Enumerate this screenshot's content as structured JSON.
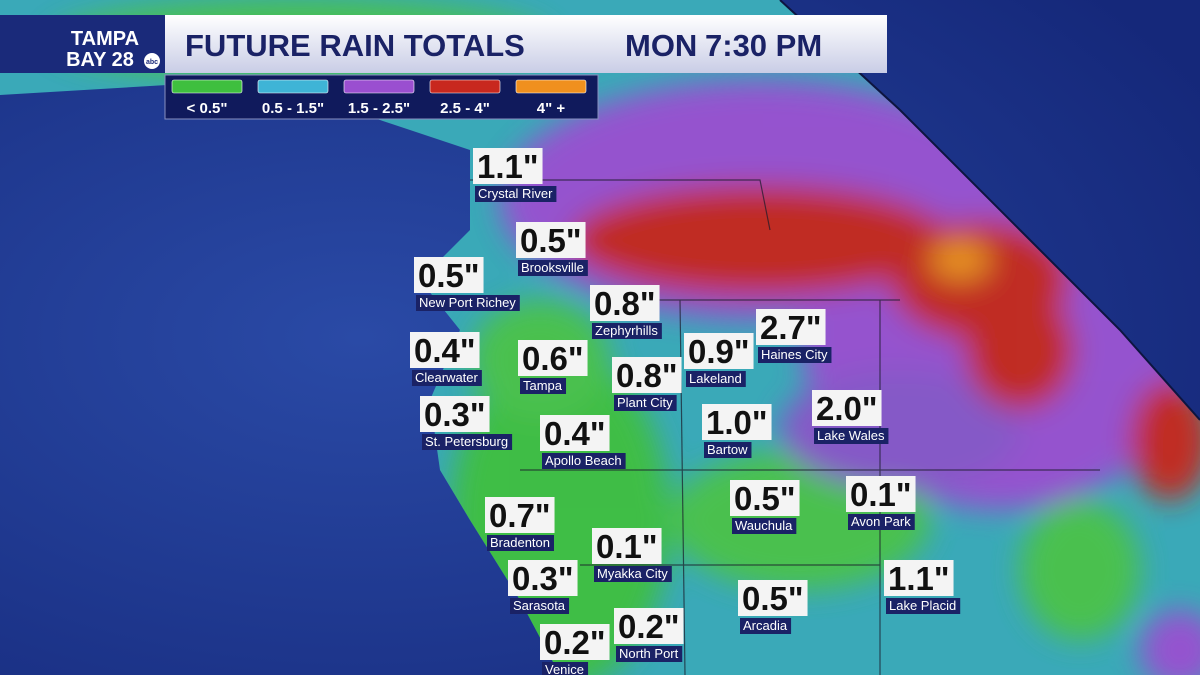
{
  "header": {
    "logo": {
      "line1": "TAMPA",
      "line2": "BAY 28",
      "network": "abc"
    },
    "title": "FUTURE RAIN TOTALS",
    "day": "MON",
    "time": "7:30 PM"
  },
  "legend": [
    {
      "label": "< 0.5\"",
      "color": "#3fbf3f"
    },
    {
      "label": "0.5 - 1.5\"",
      "color": "#3fb4d6"
    },
    {
      "label": "1.5 - 2.5\"",
      "color": "#9a4fd0"
    },
    {
      "label": "2.5 - 4\"",
      "color": "#c8281e"
    },
    {
      "label": "4\" +",
      "color": "#f0901e"
    }
  ],
  "cities": [
    {
      "name": "Crystal River",
      "total": "1.1\""
    },
    {
      "name": "Brooksville",
      "total": "0.5\""
    },
    {
      "name": "New Port Richey",
      "total": "0.5\""
    },
    {
      "name": "Zephyrhills",
      "total": "0.8\""
    },
    {
      "name": "Clearwater",
      "total": "0.4\""
    },
    {
      "name": "Tampa",
      "total": "0.6\""
    },
    {
      "name": "Plant City",
      "total": "0.8\""
    },
    {
      "name": "Lakeland",
      "total": "0.9\""
    },
    {
      "name": "Haines City",
      "total": "2.7\""
    },
    {
      "name": "St. Petersburg",
      "total": "0.3\""
    },
    {
      "name": "Apollo Beach",
      "total": "0.4\""
    },
    {
      "name": "Bartow",
      "total": "1.0\""
    },
    {
      "name": "Lake Wales",
      "total": "2.0\""
    },
    {
      "name": "Wauchula",
      "total": "0.5\""
    },
    {
      "name": "Avon Park",
      "total": "0.1\""
    },
    {
      "name": "Bradenton",
      "total": "0.7\""
    },
    {
      "name": "Myakka City",
      "total": "0.1\""
    },
    {
      "name": "Sarasota",
      "total": "0.3\""
    },
    {
      "name": "Lake Placid",
      "total": "1.1\""
    },
    {
      "name": "Arcadia",
      "total": "0.5\""
    },
    {
      "name": "North Port",
      "total": "0.2\""
    },
    {
      "name": "Venice",
      "total": "0.2\""
    }
  ]
}
